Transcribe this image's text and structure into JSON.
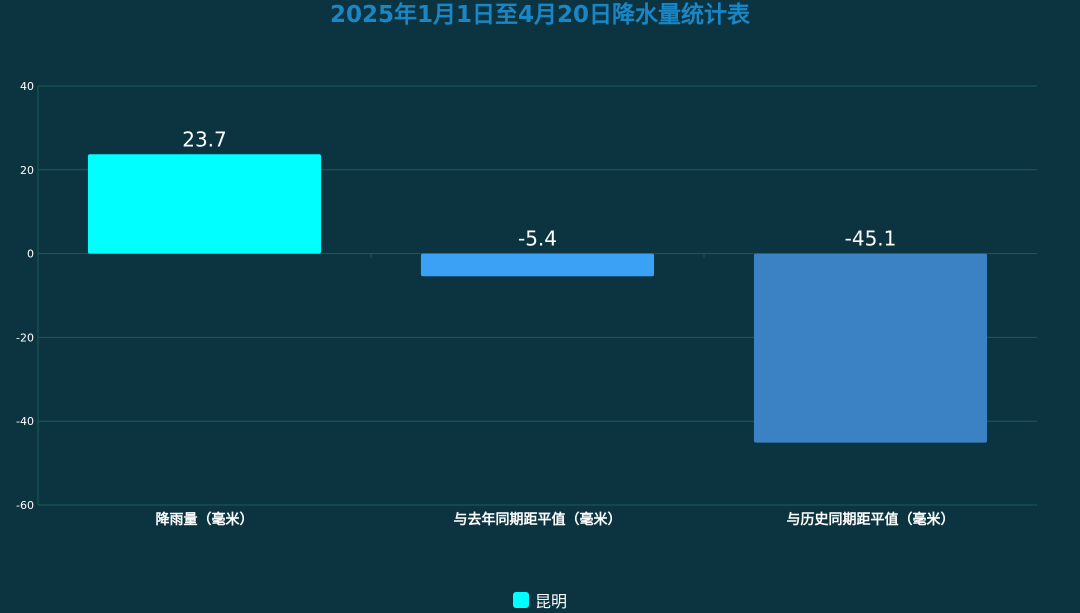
{
  "chart_data": {
    "type": "bar",
    "title": "2025年1月1日至4月20日降水量统计表",
    "categories": [
      "降雨量（毫米）",
      "与去年同期距平值（毫米）",
      "与历史同期距平值（毫米）"
    ],
    "series": [
      {
        "name": "昆明",
        "values": [
          23.7,
          -5.4,
          -45.1
        ],
        "value_labels": [
          "23.7",
          "-5.4",
          "-45.1"
        ]
      }
    ],
    "bar_colors": [
      "#00ffff",
      "#3aa1f5",
      "#3b82c4"
    ],
    "ylim": [
      -60,
      40
    ],
    "yticks": [
      40,
      20,
      0,
      -20,
      -40,
      -60
    ],
    "ytick_labels": [
      "40",
      "20",
      "0",
      "-20",
      "-40",
      "-60"
    ],
    "grid": true,
    "legend_position": "bottom-center"
  },
  "colors": {
    "background": "#0b3440",
    "title": "#1a86c6",
    "grid": "#1f5a5a",
    "legend_swatch": "#00ffff"
  }
}
